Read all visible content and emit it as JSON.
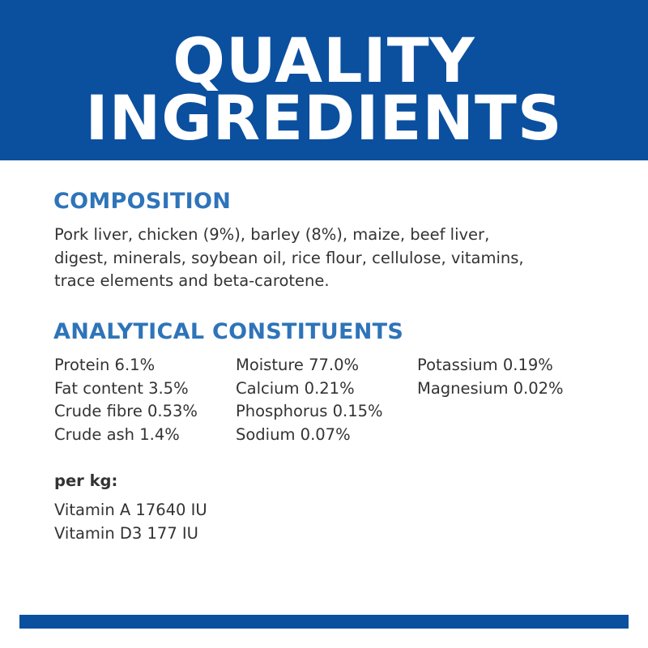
{
  "header": {
    "line1": "QUALITY",
    "line2": "INGREDIENTS",
    "color": "#0b4f9f"
  },
  "composition": {
    "heading": "COMPOSITION",
    "lines": [
      "Pork liver, chicken (9%), barley (8%), maize, beef liver,",
      "digest, minerals, soybean oil, rice flour, cellulose, vitamins,",
      "trace elements and beta-carotene."
    ]
  },
  "analytical": {
    "heading": "ANALYTICAL CONSTITUENTS",
    "columns": [
      [
        "Protein 6.1%",
        "Fat content 3.5%",
        "Crude fibre 0.53%",
        "Crude ash 1.4%"
      ],
      [
        "Moisture 77.0%",
        "Calcium 0.21%",
        "Phosphorus 0.15%",
        "Sodium 0.07%"
      ],
      [
        "Potassium 0.19%",
        "Magnesium 0.02%"
      ]
    ]
  },
  "per_kg": {
    "label": "per kg:",
    "items": [
      "Vitamin A 17640 IU",
      "Vitamin D3 177 IU"
    ]
  },
  "accent": "#2e74b9"
}
